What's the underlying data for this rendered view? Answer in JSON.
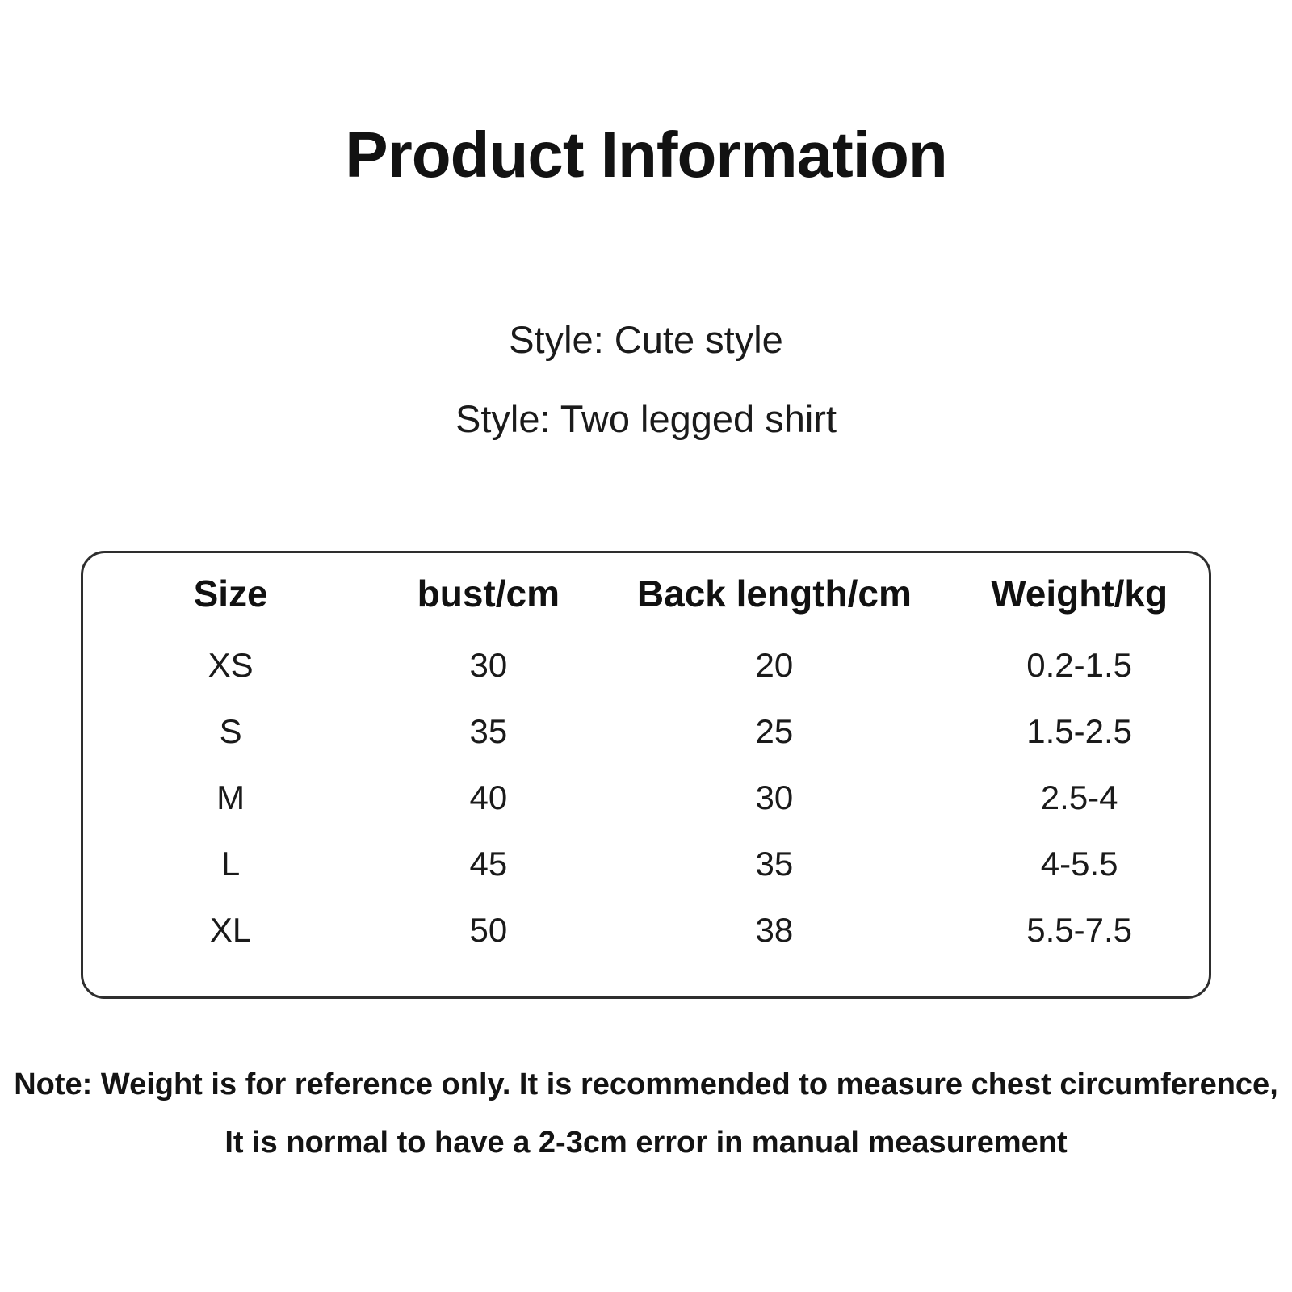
{
  "page": {
    "background_color": "#ffffff",
    "text_color": "#161616",
    "table_border_color": "#2e2e2e"
  },
  "title": "Product Information",
  "product_styles": {
    "line1": "Style: Cute style",
    "line2": "Style: Two legged shirt"
  },
  "size_chart": {
    "headers": [
      "Size",
      "bust/cm",
      "Back length/cm",
      "Weight/kg"
    ],
    "rows": [
      [
        "XS",
        "30",
        "20",
        "0.2-1.5"
      ],
      [
        "S",
        "35",
        "25",
        "1.5-2.5"
      ],
      [
        "M",
        "40",
        "30",
        "2.5-4"
      ],
      [
        "L",
        "45",
        "35",
        "4-5.5"
      ],
      [
        "XL",
        "50",
        "38",
        "5.5-7.5"
      ]
    ]
  },
  "note": {
    "line1": "Note: Weight is for reference only. It is recommended to measure chest circumference,",
    "line2": "It is normal to have a 2-3cm error in manual measurement"
  }
}
